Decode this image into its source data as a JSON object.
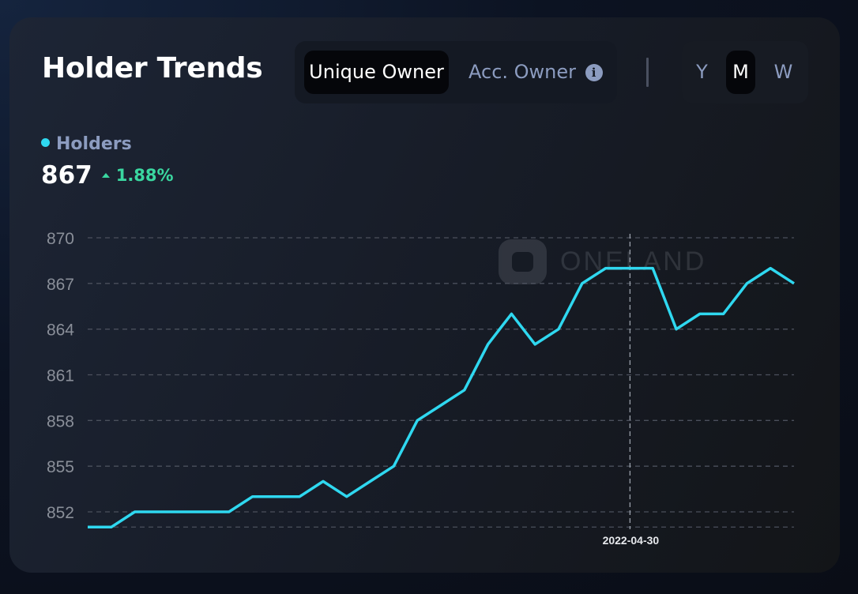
{
  "title": "Holder Trends",
  "owner_tabs": {
    "active": "Unique Owner",
    "inactive": "Acc. Owner",
    "info_icon": "info-icon"
  },
  "period_tabs": [
    "Y",
    "M",
    "W"
  ],
  "period_selected": "M",
  "legend": {
    "label": "Holders",
    "value": "867",
    "change": "1.88%",
    "change_direction": "up"
  },
  "watermark": "ONELAND",
  "colors": {
    "line": "#2fd8f0",
    "positive": "#3ad7a0",
    "accent_text": "#8c9cc0"
  },
  "chart_data": {
    "type": "line",
    "series": [
      {
        "name": "Holders",
        "values": [
          851,
          851,
          852,
          852,
          852,
          852,
          852,
          853,
          853,
          853,
          854,
          853,
          854,
          855,
          858,
          859,
          860,
          863,
          865,
          863,
          864,
          867,
          868,
          868,
          868,
          864,
          865,
          865,
          867,
          868,
          867
        ]
      }
    ],
    "yticks": [
      870,
      867,
      864,
      861,
      858,
      855,
      852
    ],
    "ylim": [
      851,
      870
    ],
    "grid": true,
    "tooltip_date": "2022-04-30",
    "tooltip_index": 23
  }
}
